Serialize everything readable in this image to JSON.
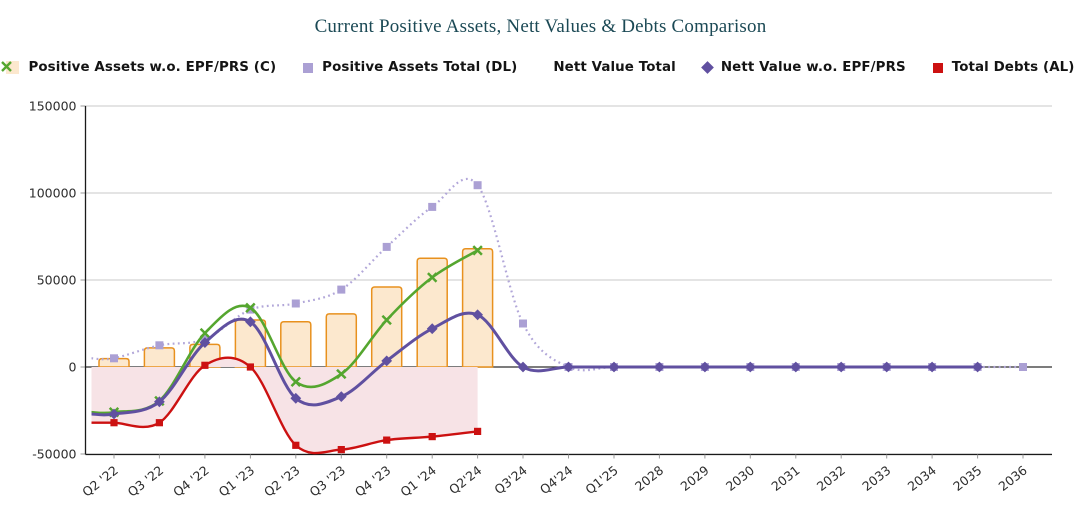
{
  "title": "Current Positive Assets, Nett Values & Debts Comparison",
  "legend": {
    "items": [
      {
        "label": "Positive Assets w.o. EPF/PRS (C)",
        "marker": "square-large",
        "color": "#fce8ce"
      },
      {
        "label": "Positive Assets Total (DL)",
        "marker": "square",
        "color": "#aba0d4"
      },
      {
        "label": "Nett Value Total",
        "marker": "x",
        "color": "#55a62f"
      },
      {
        "label": "Nett Value w.o. EPF/PRS",
        "marker": "diamond",
        "color": "#6050a0"
      },
      {
        "label": "Total Debts (AL)",
        "marker": "square",
        "color": "#cc1111"
      }
    ]
  },
  "chart_data": {
    "type": "combo",
    "title": "Current Positive Assets, Nett Values & Debts Comparison",
    "categories": [
      "Q2 '22",
      "Q3 '22",
      "Q4 '22",
      "Q1 '23",
      "Q2 '23",
      "Q3 '23",
      "Q4 '23",
      "Q1 '24",
      "Q2'24",
      "Q3'24",
      "Q4'24",
      "Q1'25",
      "2028",
      "2029",
      "2030",
      "2031",
      "2032",
      "2033",
      "2034",
      "2035",
      "2036"
    ],
    "ylim": [
      -50000,
      150000
    ],
    "yticks": [
      150000,
      100000,
      50000,
      0,
      -50000
    ],
    "ytick_labels": [
      "150000",
      "100000",
      "50000",
      "0",
      "-50000"
    ],
    "grid": true,
    "legend_position": "top",
    "series": [
      {
        "name": "Positive Assets w.o. EPF/PRS (C)",
        "type": "bar",
        "color": "#e8911e",
        "fill": "#fce8ce",
        "values": [
          4800,
          11000,
          13000,
          27000,
          26000,
          30500,
          46000,
          62500,
          68000,
          null,
          null,
          null,
          null,
          null,
          null,
          null,
          null,
          null,
          null,
          null,
          null
        ]
      },
      {
        "name": "Positive Assets Total (DL)",
        "type": "line-dotted",
        "marker": "square",
        "color": "#b2a7d9",
        "marker_color": "#aba0d4",
        "values": [
          5000,
          12500,
          16000,
          33000,
          36500,
          44500,
          69000,
          92000,
          104500,
          25000,
          0,
          0,
          0,
          0,
          0,
          0,
          0,
          0,
          0,
          0,
          0
        ]
      },
      {
        "name": "Nett Value Total",
        "type": "line",
        "marker": "x",
        "color": "#55a62f",
        "values": [
          -26000,
          -19500,
          19500,
          34000,
          -8500,
          -4000,
          27000,
          51500,
          67000,
          null,
          null,
          null,
          null,
          null,
          null,
          null,
          null,
          null,
          null,
          null,
          null
        ]
      },
      {
        "name": "Nett Value w.o. EPF/PRS",
        "type": "line",
        "marker": "diamond",
        "color": "#6050a0",
        "values": [
          -27000,
          -20000,
          14000,
          26000,
          -18000,
          -17000,
          3500,
          22000,
          30000,
          0,
          0,
          0,
          0,
          0,
          0,
          0,
          0,
          0,
          0,
          0,
          null
        ]
      },
      {
        "name": "Total Debts (AL)",
        "type": "area",
        "marker": "square",
        "color": "#cc1111",
        "fill": "#f7e3e6",
        "values": [
          -32000,
          -32000,
          1000,
          0,
          -45000,
          -47500,
          -42000,
          -40000,
          -37000,
          null,
          null,
          null,
          null,
          null,
          null,
          null,
          null,
          null,
          null,
          null,
          null
        ]
      }
    ]
  },
  "colors": {
    "title": "#1b4955",
    "gridline": "#c9c9c9",
    "zero_line": "#2f2f2f",
    "axis": "#1a1a1a",
    "tick_text": "#2d2d2d"
  }
}
